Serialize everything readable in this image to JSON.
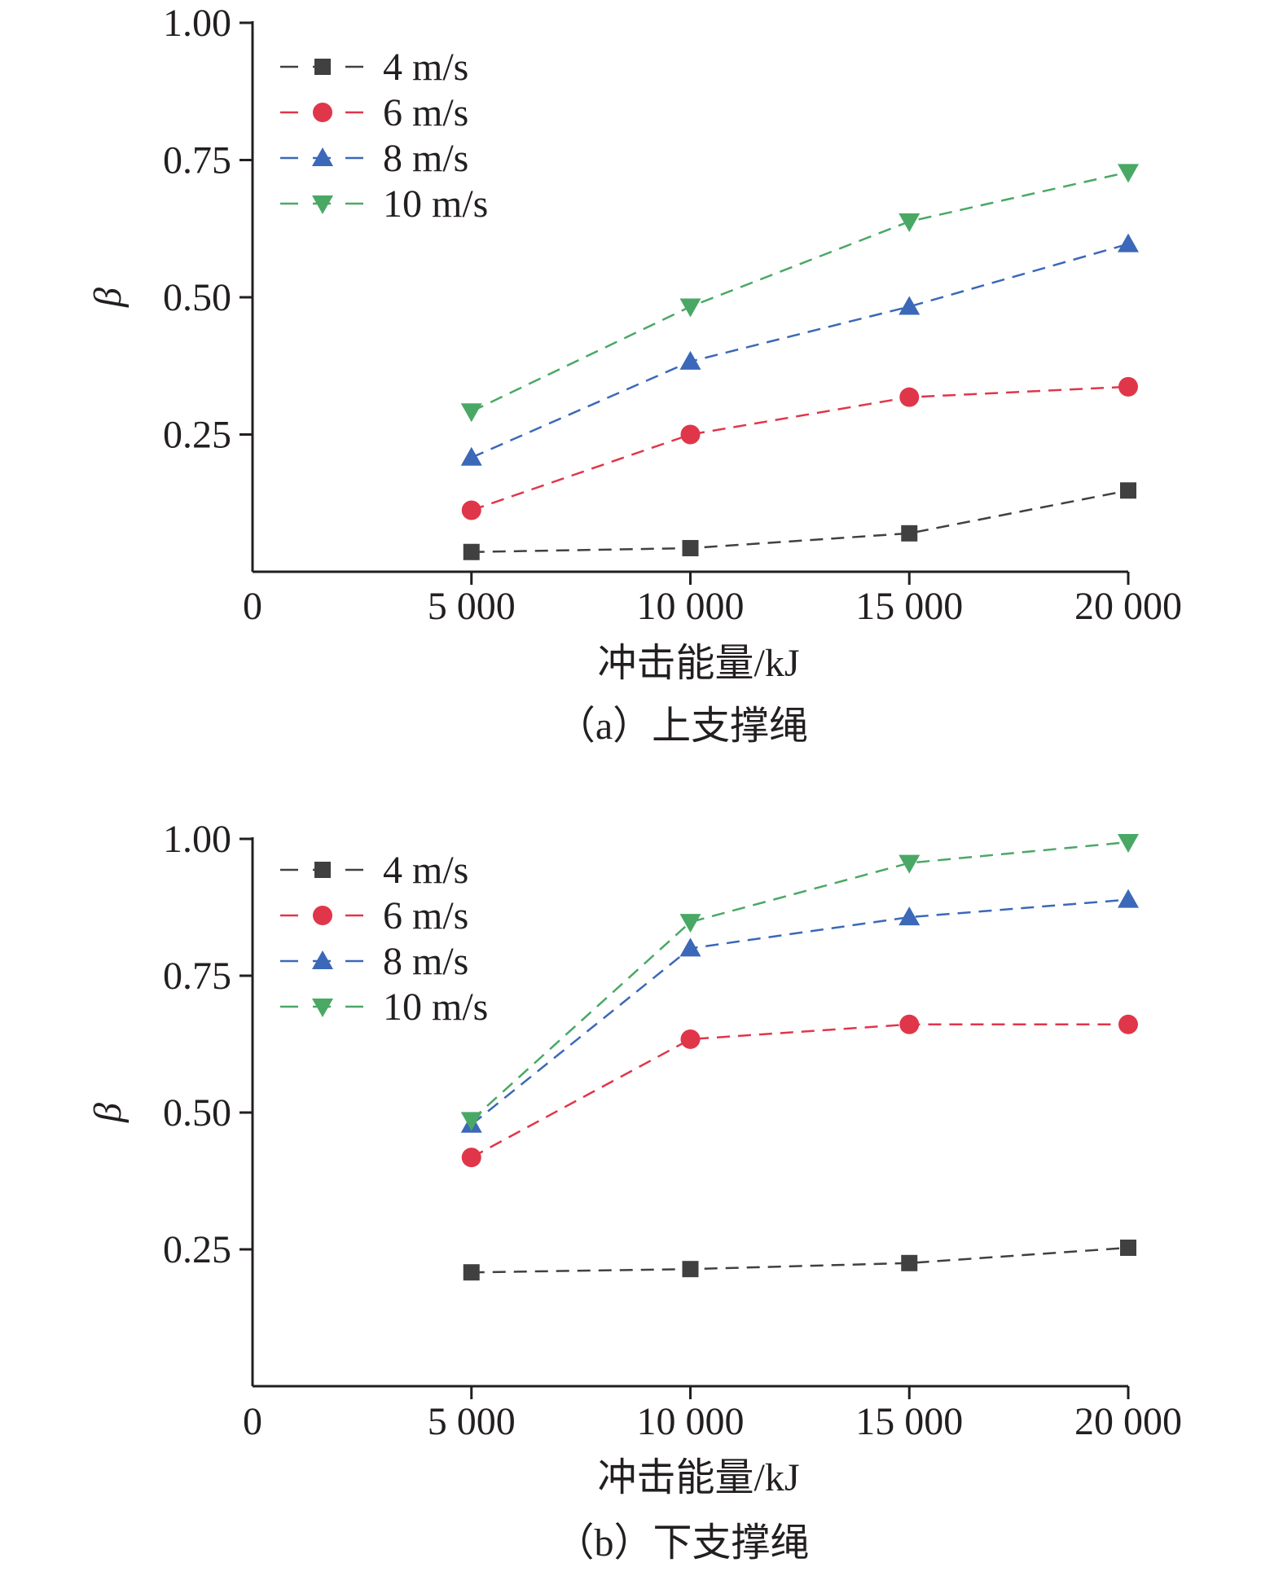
{
  "colors": {
    "4 m/s": "#404040",
    "6 m/s": "#e0364a",
    "8 m/s": "#3b68b8",
    "10 m/s": "#4aa865",
    "axis": "#231f20"
  },
  "chart_data": [
    {
      "type": "line",
      "caption": "（a）上支撑绳",
      "xlabel": "冲击能量/kJ",
      "ylabel": "β",
      "xlim": [
        0,
        20000
      ],
      "ylim": [
        0,
        1.0
      ],
      "x_ticks": [
        0,
        5000,
        10000,
        15000,
        20000
      ],
      "x_tick_labels": [
        "0",
        "5 000",
        "10 000",
        "15 000",
        "20 000"
      ],
      "y_ticks": [
        0.25,
        0.5,
        0.75,
        1.0
      ],
      "y_tick_labels": [
        "0.25",
        "0.50",
        "0.75",
        "1.00"
      ],
      "legend_position": "top-left",
      "grid": false,
      "x": [
        5000,
        10000,
        15000,
        20000
      ],
      "series": [
        {
          "name": "4 m/s",
          "marker": "square",
          "color": "#404040",
          "values": [
            0.036,
            0.043,
            0.07,
            0.148
          ]
        },
        {
          "name": "6 m/s",
          "marker": "circle",
          "color": "#e0364a",
          "values": [
            0.112,
            0.25,
            0.318,
            0.337
          ]
        },
        {
          "name": "8 m/s",
          "marker": "triangle-up",
          "color": "#3b68b8",
          "values": [
            0.208,
            0.383,
            0.483,
            0.597
          ]
        },
        {
          "name": "10 m/s",
          "marker": "triangle-down",
          "color": "#4aa865",
          "values": [
            0.292,
            0.483,
            0.638,
            0.728
          ]
        }
      ]
    },
    {
      "type": "line",
      "caption": "（b）下支撑绳",
      "xlabel": "冲击能量/kJ",
      "ylabel": "β",
      "xlim": [
        0,
        20000
      ],
      "ylim": [
        0,
        1.0
      ],
      "x_ticks": [
        0,
        5000,
        10000,
        15000,
        20000
      ],
      "x_tick_labels": [
        "0",
        "5 000",
        "10 000",
        "15 000",
        "20 000"
      ],
      "y_ticks": [
        0.25,
        0.5,
        0.75,
        1.0
      ],
      "y_tick_labels": [
        "0.25",
        "0.50",
        "0.75",
        "1.00"
      ],
      "legend_position": "top-left",
      "grid": false,
      "x": [
        5000,
        10000,
        15000,
        20000
      ],
      "series": [
        {
          "name": "4 m/s",
          "marker": "square",
          "color": "#404040",
          "values": [
            0.208,
            0.214,
            0.225,
            0.253
          ]
        },
        {
          "name": "6 m/s",
          "marker": "circle",
          "color": "#e0364a",
          "values": [
            0.418,
            0.634,
            0.661,
            0.661
          ]
        },
        {
          "name": "8 m/s",
          "marker": "triangle-up",
          "color": "#3b68b8",
          "values": [
            0.478,
            0.8,
            0.857,
            0.889
          ]
        },
        {
          "name": "10 m/s",
          "marker": "triangle-down",
          "color": "#4aa865",
          "values": [
            0.486,
            0.848,
            0.956,
            0.994
          ]
        }
      ]
    }
  ]
}
